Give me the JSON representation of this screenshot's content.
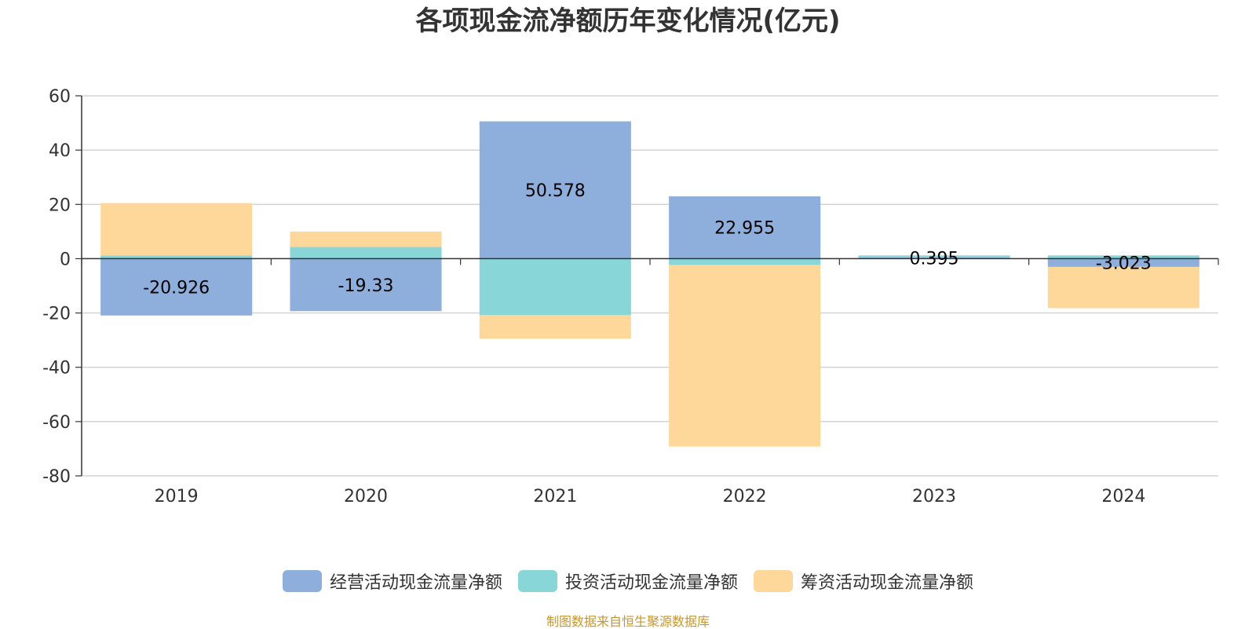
{
  "chart_data": {
    "type": "bar",
    "stacked": true,
    "title": "各项现金流净额历年变化情况(亿元)",
    "categories": [
      "2019",
      "2020",
      "2021",
      "2022",
      "2023",
      "2024"
    ],
    "series": [
      {
        "name": "经营活动现金流量净额",
        "color": "#8eaedc",
        "values": [
          -20.926,
          -19.33,
          50.578,
          22.955,
          0.395,
          -3.023
        ],
        "labels": [
          "-20.926",
          "-19.33",
          "50.578",
          "22.955",
          "0.395",
          "-3.023"
        ]
      },
      {
        "name": "投资活动现金流量净额",
        "color": "#88d6d8",
        "values": [
          1.2,
          4.3,
          -20.8,
          -2.3,
          0.8,
          1.2
        ]
      },
      {
        "name": "筹资活动现金流量净额",
        "color": "#fed89a",
        "values": [
          19.3,
          5.7,
          -8.7,
          -66.9,
          0,
          -15.2
        ]
      }
    ],
    "ylim": [
      -80,
      60
    ],
    "yticks": [
      -80,
      -60,
      -40,
      -20,
      0,
      20,
      40,
      60
    ],
    "grid": true,
    "legend": "bottom-center"
  },
  "footer": {
    "source": "制图数据来自恒生聚源数据库"
  }
}
